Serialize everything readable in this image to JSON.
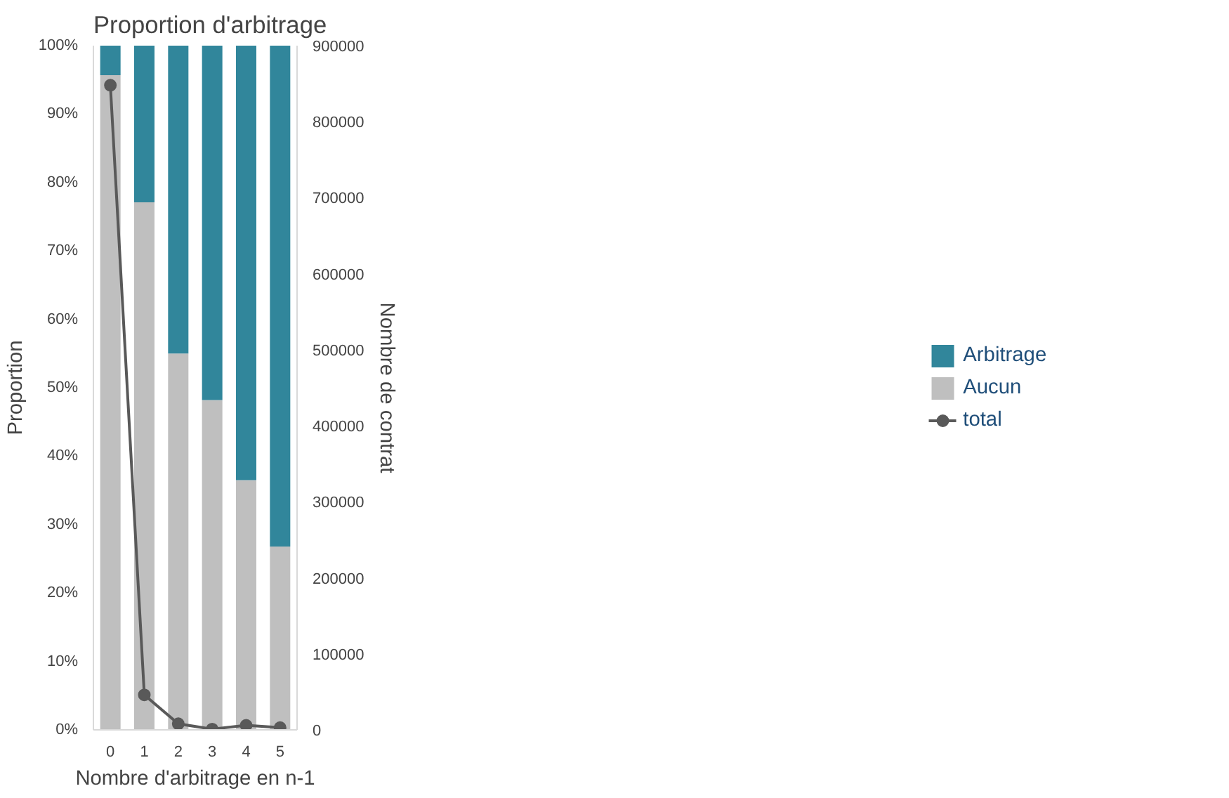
{
  "chart_data": {
    "type": "bar",
    "title": "Proportion d'arbitrage",
    "xlabel": "Nombre d'arbitrage en n-1",
    "ylabel": "Proportion",
    "y2label": "Nombre de contrat",
    "categories": [
      "0",
      "1",
      "2",
      "3",
      "4",
      "5"
    ],
    "stacked": true,
    "series": [
      {
        "name": "Aucun",
        "color": "#bfbfbf",
        "values": [
          95.7,
          77.1,
          55.0,
          48.2,
          36.5,
          26.8
        ]
      },
      {
        "name": "Arbitrage",
        "color": "#31869b",
        "values": [
          4.3,
          22.9,
          45.0,
          51.8,
          63.5,
          73.2
        ]
      },
      {
        "name": "total",
        "color": "#595959",
        "type": "line",
        "axis": "y2",
        "marker": "circle",
        "values": [
          848000,
          46000,
          8000,
          1000,
          6000,
          3000
        ]
      }
    ],
    "ylim": [
      0,
      100
    ],
    "yticks": [
      {
        "value": 0,
        "label": "0%"
      },
      {
        "value": 10,
        "label": "10%"
      },
      {
        "value": 20,
        "label": "20%"
      },
      {
        "value": 30,
        "label": "30%"
      },
      {
        "value": 40,
        "label": "40%"
      },
      {
        "value": 50,
        "label": "50%"
      },
      {
        "value": 60,
        "label": "60%"
      },
      {
        "value": 70,
        "label": "70%"
      },
      {
        "value": 80,
        "label": "80%"
      },
      {
        "value": 90,
        "label": "90%"
      },
      {
        "value": 100,
        "label": "100%"
      }
    ],
    "y2lim": [
      0,
      900000
    ],
    "y2ticks": [
      0,
      100000,
      200000,
      300000,
      400000,
      500000,
      600000,
      700000,
      800000,
      900000
    ],
    "grid": false,
    "legend": "right"
  }
}
